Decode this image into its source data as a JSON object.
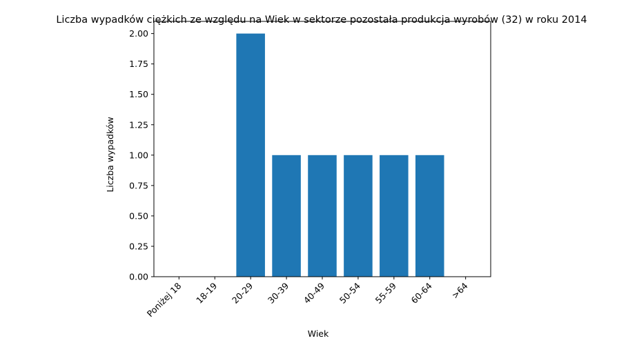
{
  "chart_data": {
    "type": "bar",
    "title": "Liczba wypadków ciężkich ze względu na Wiek w sektorze pozostała produkcja wyrobów  (32)   w roku 2014",
    "xlabel": "Wiek",
    "ylabel": "Liczba wypadków",
    "categories": [
      "Poniżej 18",
      "18-19",
      "20-29",
      "30-39",
      "40-49",
      "50-54",
      "55-59",
      "60-64",
      ">64"
    ],
    "values": [
      0,
      0,
      2,
      1,
      1,
      1,
      1,
      1,
      0
    ],
    "ylim": [
      0,
      2.1
    ],
    "yticks": [
      "0.00",
      "0.25",
      "0.50",
      "0.75",
      "1.00",
      "1.25",
      "1.50",
      "1.75",
      "2.00"
    ],
    "bar_color": "#1f77b4",
    "grid": false,
    "legend": "none"
  }
}
